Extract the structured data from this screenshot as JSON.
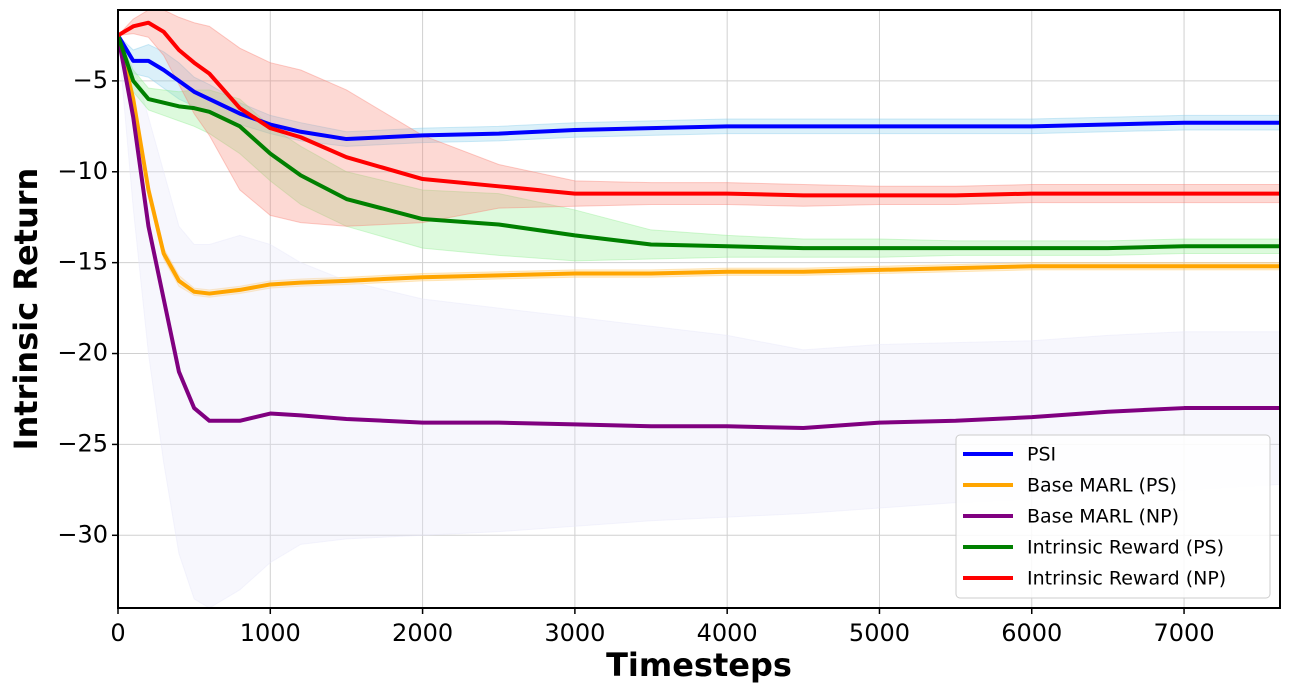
{
  "chart_data": {
    "type": "line",
    "x_label": "Timesteps",
    "y_label": "Intrinsic Return",
    "xlim": [
      0,
      7630
    ],
    "ylim": [
      -34,
      -1.1
    ],
    "xticks": [
      0,
      1000,
      2000,
      3000,
      4000,
      5000,
      6000,
      7000
    ],
    "yticks": [
      {
        "value": -30,
        "label": "−30"
      },
      {
        "value": -25,
        "label": "−25"
      },
      {
        "value": -20,
        "label": "−20"
      },
      {
        "value": -15,
        "label": "−15"
      },
      {
        "value": -10,
        "label": "−10"
      },
      {
        "value": -5,
        "label": "−5"
      }
    ],
    "grid": true,
    "legend": "lower right",
    "x": [
      0,
      100,
      200,
      300,
      400,
      500,
      600,
      800,
      1000,
      1200,
      1500,
      2000,
      2500,
      3000,
      3500,
      4000,
      4500,
      5000,
      5500,
      6000,
      6500,
      7000,
      7630
    ],
    "series": [
      {
        "name": "PSI",
        "color": "#0000ff",
        "band_color": "#87ceeb",
        "values": [
          -2.5,
          -3.9,
          -3.9,
          -4.4,
          -5,
          -5.6,
          -6,
          -6.8,
          -7.4,
          -7.8,
          -8.2,
          -8.0,
          -7.9,
          -7.7,
          -7.6,
          -7.5,
          -7.5,
          -7.5,
          -7.5,
          -7.5,
          -7.4,
          -7.3,
          -7.3
        ],
        "lower": [
          -2.5,
          -4.6,
          -4.8,
          -5.4,
          -6.0,
          -6.4,
          -6.8,
          -7.4,
          -7.9,
          -8.3,
          -8.6,
          -8.4,
          -8.3,
          -8.1,
          -8.0,
          -7.9,
          -7.9,
          -7.9,
          -7.9,
          -7.9,
          -7.8,
          -7.7,
          -7.7
        ],
        "upper": [
          -2.5,
          -3.3,
          -3.0,
          -3.4,
          -4.0,
          -4.8,
          -5.2,
          -6.2,
          -6.9,
          -7.3,
          -7.8,
          -7.6,
          -7.5,
          -7.3,
          -7.2,
          -7.1,
          -7.1,
          -7.1,
          -7.1,
          -7.1,
          -7.0,
          -6.9,
          -6.9
        ]
      },
      {
        "name": "Base MARL (PS)",
        "color": "#ffa500",
        "band_color": "#ffc966",
        "values": [
          -2.5,
          -6,
          -11,
          -14.5,
          -16,
          -16.6,
          -16.7,
          -16.5,
          -16.2,
          -16.1,
          -16.0,
          -15.8,
          -15.7,
          -15.6,
          -15.6,
          -15.5,
          -15.5,
          -15.4,
          -15.3,
          -15.2,
          -15.2,
          -15.2,
          -15.2
        ],
        "lower": [
          -2.5,
          -6.3,
          -11.4,
          -14.8,
          -16.3,
          -16.8,
          -16.9,
          -16.7,
          -16.4,
          -16.3,
          -16.2,
          -16.0,
          -15.9,
          -15.8,
          -15.8,
          -15.7,
          -15.7,
          -15.6,
          -15.5,
          -15.4,
          -15.4,
          -15.4,
          -15.4
        ],
        "upper": [
          -2.5,
          -5.7,
          -10.6,
          -14.2,
          -15.7,
          -16.4,
          -16.5,
          -16.3,
          -16.0,
          -15.9,
          -15.8,
          -15.6,
          -15.5,
          -15.4,
          -15.4,
          -15.3,
          -15.3,
          -15.2,
          -15.1,
          -15.0,
          -15.0,
          -15.0,
          -15.0
        ]
      },
      {
        "name": "Base MARL (NP)",
        "color": "#800080",
        "band_color": "#e6e6fa",
        "values": [
          -2.5,
          -7,
          -13,
          -17,
          -21,
          -23,
          -23.7,
          -23.7,
          -23.3,
          -23.4,
          -23.6,
          -23.8,
          -23.8,
          -23.9,
          -24,
          -24,
          -24.1,
          -23.8,
          -23.7,
          -23.5,
          -23.2,
          -23,
          -23
        ],
        "lower": [
          -2.5,
          -12,
          -20,
          -26,
          -31,
          -33.5,
          -34,
          -33,
          -31.5,
          -30.5,
          -30.2,
          -30,
          -29.8,
          -29.5,
          -29.2,
          -29,
          -28.8,
          -28.5,
          -28.2,
          -28,
          -27.7,
          -27.5,
          -27.2
        ],
        "upper": [
          -2.5,
          -4,
          -7,
          -10,
          -13,
          -14,
          -14,
          -13.5,
          -14,
          -15,
          -16,
          -17,
          -17.5,
          -18,
          -18.5,
          -19,
          -19.8,
          -19.5,
          -19.4,
          -19.3,
          -19,
          -18.8,
          -18.8
        ]
      },
      {
        "name": "Intrinsic Reward (PS)",
        "color": "#008000",
        "band_color": "#90ee90",
        "values": [
          -2.5,
          -5,
          -6,
          -6.2,
          -6.4,
          -6.5,
          -6.7,
          -7.5,
          -9,
          -10.2,
          -11.5,
          -12.6,
          -12.9,
          -13.5,
          -14,
          -14.1,
          -14.2,
          -14.2,
          -14.2,
          -14.2,
          -14.2,
          -14.1,
          -14.1
        ],
        "lower": [
          -2.5,
          -5.6,
          -6.6,
          -6.9,
          -7.2,
          -7.5,
          -7.9,
          -9.0,
          -10.5,
          -11.8,
          -13.0,
          -14.2,
          -14.6,
          -14.9,
          -14.8,
          -14.7,
          -14.7,
          -14.7,
          -14.6,
          -14.6,
          -14.6,
          -14.5,
          -14.5
        ],
        "upper": [
          -2.5,
          -4.4,
          -5.4,
          -5.5,
          -5.6,
          -5.5,
          -5.5,
          -6.0,
          -7.5,
          -8.6,
          -10.0,
          -11.0,
          -11.2,
          -12.1,
          -13.2,
          -13.5,
          -13.7,
          -13.7,
          -13.8,
          -13.8,
          -13.8,
          -13.7,
          -13.7
        ]
      },
      {
        "name": "Intrinsic Reward (NP)",
        "color": "#ff0000",
        "band_color": "#fa8072",
        "values": [
          -2.5,
          -2,
          -1.8,
          -2.3,
          -3.3,
          -4,
          -4.6,
          -6.5,
          -7.6,
          -8.1,
          -9.2,
          -10.4,
          -10.8,
          -11.2,
          -11.2,
          -11.2,
          -11.3,
          -11.3,
          -11.3,
          -11.2,
          -11.2,
          -11.2,
          -11.2
        ],
        "lower": [
          -2.5,
          -2.4,
          -2.6,
          -3.6,
          -5.2,
          -6.8,
          -8.0,
          -11.0,
          -12.4,
          -12.8,
          -13.0,
          -12.8,
          -12.0,
          -11.9,
          -11.8,
          -11.8,
          -11.9,
          -11.8,
          -11.8,
          -11.7,
          -11.7,
          -11.7,
          -11.7
        ],
        "upper": [
          -2.5,
          -1.6,
          -1.1,
          -1.1,
          -1.5,
          -1.8,
          -2.0,
          -3.2,
          -4.0,
          -4.4,
          -5.5,
          -8.0,
          -9.6,
          -10.5,
          -10.6,
          -10.6,
          -10.7,
          -10.8,
          -10.8,
          -10.7,
          -10.7,
          -10.7,
          -10.7
        ]
      }
    ]
  }
}
